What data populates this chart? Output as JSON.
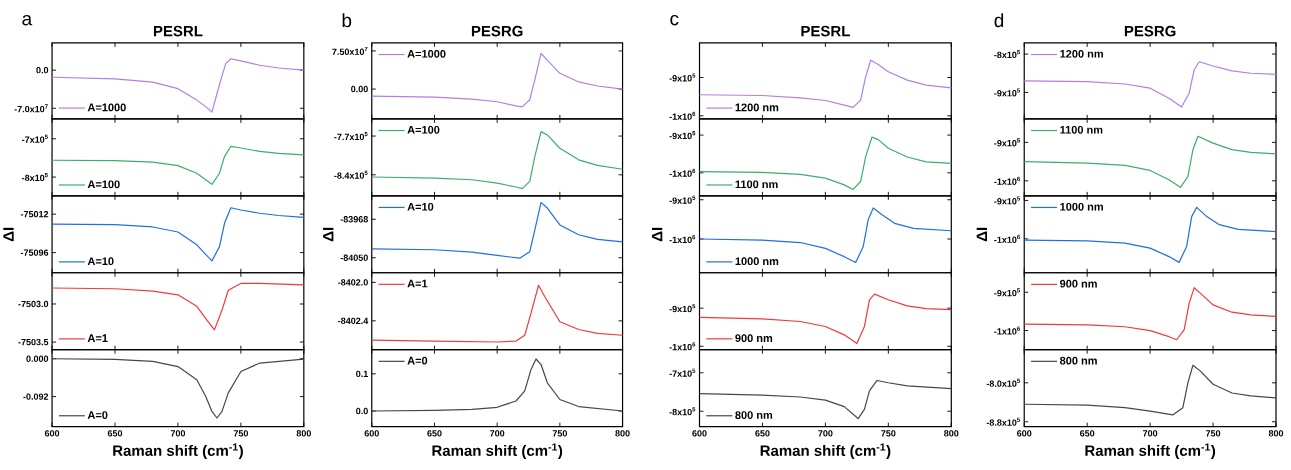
{
  "chart_data": [
    {
      "type": "line",
      "title": "PESRL",
      "annotations": [
        "a"
      ],
      "legend": "bottom left",
      "tick_labels": "y",
      "xlim": [
        600,
        800
      ],
      "xticks": [
        600,
        650,
        700,
        750,
        800
      ],
      "ylim": [
        -89500000,
        50000000
      ],
      "yticks": [
        {
          "value": -70000000,
          "label": "-7.0x10$^{7}$"
        },
        {
          "value": 0,
          "label": "0.0"
        }
      ],
      "x": [
        600,
        650,
        680,
        700,
        715,
        722,
        727,
        734,
        738,
        742,
        750,
        765,
        780,
        800
      ],
      "series": [
        {
          "name": "A=1000",
          "color": "#b27fe6",
          "values": [
            -13000000,
            -16000000,
            -22000000,
            -34000000,
            -55000000,
            -67000000,
            -77000000,
            -18000000,
            12000000,
            21000000,
            17000000,
            9000000,
            4000000,
            0
          ]
        }
      ]
    },
    {
      "type": "line",
      "legend": "bottom left",
      "tick_labels": "y",
      "xlim": [
        600,
        800
      ],
      "xticks": [
        600,
        650,
        700,
        750,
        800
      ],
      "ylim": [
        -849000,
        -648000
      ],
      "yticks": [
        {
          "value": -800000,
          "label": "-8x10$^{5}$"
        },
        {
          "value": -700000,
          "label": "-7x10$^{5}$"
        }
      ],
      "x": [
        600,
        650,
        680,
        700,
        715,
        722,
        727,
        733,
        737,
        742,
        750,
        765,
        780,
        800
      ],
      "series": [
        {
          "name": "A=100",
          "color": "#3cae6a",
          "values": [
            -756000,
            -757000,
            -761000,
            -770000,
            -790000,
            -807000,
            -819000,
            -790000,
            -746000,
            -720000,
            -724000,
            -733000,
            -738000,
            -742000
          ]
        }
      ]
    },
    {
      "type": "line",
      "ylabel": "ΔI",
      "legend": "bottom left",
      "tick_labels": "y",
      "xlim": [
        600,
        800
      ],
      "xticks": [
        600,
        650,
        700,
        750,
        800
      ],
      "ylim": [
        -75140,
        -74972
      ],
      "yticks": [
        -75096,
        -75012
      ],
      "x": [
        600,
        650,
        680,
        700,
        715,
        722,
        727,
        733,
        737,
        742,
        750,
        765,
        780,
        800
      ],
      "series": [
        {
          "name": "A=10",
          "color": "#1e6fe3",
          "values": [
            -75034,
            -75035,
            -75040,
            -75051,
            -75079,
            -75100,
            -75114,
            -75083,
            -75032,
            -74998,
            -75003,
            -75010,
            -75015,
            -75019
          ]
        }
      ]
    },
    {
      "type": "line",
      "legend": "bottom left",
      "tick_labels": "y",
      "xlim": [
        600,
        800
      ],
      "xticks": [
        600,
        650,
        700,
        750,
        800
      ],
      "ylim": [
        -7503.6,
        -7502.59
      ],
      "yticks": [
        {
          "value": -7503.5,
          "label": "-7503.5"
        },
        {
          "value": -7503,
          "label": "-7503.0"
        }
      ],
      "x": [
        600,
        650,
        680,
        700,
        715,
        722,
        729,
        735,
        740,
        750,
        765,
        800
      ],
      "series": [
        {
          "name": "A=1",
          "color": "#f03a3a",
          "values": [
            -7502.79,
            -7502.8,
            -7502.83,
            -7502.88,
            -7503.03,
            -7503.19,
            -7503.34,
            -7503.08,
            -7502.82,
            -7502.73,
            -7502.73,
            -7502.75
          ]
        }
      ]
    },
    {
      "type": "line",
      "xlabel": "Raman shift (cm$^{-1}$)",
      "legend": "bottom left",
      "xlim": [
        600,
        800
      ],
      "xticks": [
        600,
        650,
        700,
        750,
        800
      ],
      "ylim": [
        -0.165,
        0.022
      ],
      "yticks": [
        -0.092,
        {
          "value": 0,
          "label": "0.000"
        }
      ],
      "x": [
        600,
        650,
        680,
        700,
        715,
        722,
        727,
        731,
        735,
        740,
        750,
        765,
        800
      ],
      "series": [
        {
          "name": "A=0",
          "color": "#474747",
          "values": [
            0,
            -0.0016,
            -0.0065,
            -0.019,
            -0.051,
            -0.091,
            -0.128,
            -0.144,
            -0.128,
            -0.083,
            -0.031,
            -0.0105,
            -0.0008
          ]
        }
      ]
    },
    {
      "type": "line",
      "title": "PESRG",
      "annotations": [
        "b"
      ],
      "legend": "top left",
      "tick_labels": "y",
      "xlim": [
        600,
        800
      ],
      "xticks": [
        600,
        650,
        700,
        750,
        800
      ],
      "ylim": [
        -58700000,
        90700000
      ],
      "yticks": [
        {
          "value": 0,
          "label": "0.00"
        },
        {
          "value": 75000000,
          "label": "7.50x10$^{7}$"
        }
      ],
      "x": [
        600,
        650,
        680,
        700,
        715,
        720,
        726,
        730,
        735,
        740,
        750,
        765,
        780,
        800
      ],
      "series": [
        {
          "name": "A=1000",
          "color": "#b27fe6",
          "values": [
            -14000000,
            -16000000,
            -20000000,
            -25000000,
            -33000000,
            -35000000,
            -21000000,
            18000000,
            70000000,
            57000000,
            31000000,
            14000000,
            6000000,
            0
          ]
        }
      ]
    },
    {
      "type": "line",
      "legend": "top left",
      "tick_labels": "y",
      "xlim": [
        600,
        800
      ],
      "xticks": [
        600,
        650,
        700,
        750,
        800
      ],
      "ylim": [
        -878000,
        -739000
      ],
      "yticks": [
        {
          "value": -840000,
          "label": "-8.4x10$^{5}$"
        },
        {
          "value": -770000,
          "label": "-7.7x10$^{5}$"
        }
      ],
      "x": [
        600,
        650,
        680,
        700,
        715,
        720,
        726,
        730,
        735,
        740,
        750,
        765,
        780,
        800
      ],
      "series": [
        {
          "name": "A=100",
          "color": "#3cae6a",
          "values": [
            -844000,
            -846000,
            -849000,
            -855000,
            -862000,
            -865000,
            -852000,
            -807000,
            -762000,
            -768000,
            -792000,
            -813000,
            -823000,
            -830000
          ]
        }
      ]
    },
    {
      "type": "line",
      "ylabel": "ΔI",
      "legend": "top left",
      "tick_labels": "y",
      "xlim": [
        600,
        800
      ],
      "xticks": [
        600,
        650,
        700,
        750,
        800
      ],
      "ylim": [
        -84082,
        -83918
      ],
      "yticks": [
        -84050,
        -83968
      ],
      "x": [
        600,
        650,
        680,
        700,
        718,
        726,
        730,
        735,
        740,
        750,
        765,
        780,
        800
      ],
      "series": [
        {
          "name": "A=10",
          "color": "#1e6fe3",
          "values": [
            -84031,
            -84033,
            -84038,
            -84045,
            -84051,
            -84037,
            -83991,
            -83932,
            -83944,
            -83980,
            -84001,
            -84011,
            -84016
          ]
        }
      ]
    },
    {
      "type": "line",
      "legend": "top left",
      "tick_labels": "y",
      "xlim": [
        600,
        800
      ],
      "xticks": [
        600,
        650,
        700,
        750,
        800
      ],
      "ylim": [
        -8402.7,
        -8401.9
      ],
      "yticks": [
        -8402.4,
        {
          "value": -8402,
          "label": "-8402.0"
        }
      ],
      "x": [
        600,
        650,
        700,
        715,
        722,
        727,
        733,
        738,
        750,
        765,
        780,
        800
      ],
      "series": [
        {
          "name": "A=1",
          "color": "#f03a3a",
          "values": [
            -8402.6,
            -8402.61,
            -8402.62,
            -8402.61,
            -8402.55,
            -8402.32,
            -8402.03,
            -8402.15,
            -8402.41,
            -8402.49,
            -8402.53,
            -8402.55
          ]
        }
      ]
    },
    {
      "type": "line",
      "xlabel": "Raman shift (cm$^{-1}$)",
      "legend": "top left",
      "xlim": [
        600,
        800
      ],
      "xticks": [
        600,
        650,
        700,
        750,
        800
      ],
      "ylim": [
        -0.042,
        0.165
      ],
      "yticks": [
        {
          "value": 0,
          "label": "0.0"
        },
        0.1
      ],
      "x": [
        600,
        650,
        680,
        700,
        715,
        722,
        727,
        731,
        735,
        740,
        750,
        765,
        800
      ],
      "series": [
        {
          "name": "A=0",
          "color": "#474747",
          "values": [
            0,
            0.002,
            0.0045,
            0.01,
            0.027,
            0.054,
            0.112,
            0.14,
            0.125,
            0.076,
            0.031,
            0.012,
            0
          ]
        }
      ]
    },
    {
      "type": "line",
      "title": "PESRL",
      "annotations": [
        "c"
      ],
      "legend": "bottom left",
      "tick_labels": "y",
      "xlim": [
        600,
        800
      ],
      "xticks": [
        600,
        650,
        700,
        750,
        800
      ],
      "ylim": [
        -1008000,
        -810000
      ],
      "yticks": [
        {
          "value": -1000000,
          "label": "-1x10$^{6}$"
        },
        {
          "value": -900000,
          "label": "-9x10$^{5}$"
        }
      ],
      "x": [
        600,
        650,
        680,
        700,
        715,
        722,
        728,
        732,
        736,
        742,
        750,
        765,
        780,
        800
      ],
      "series": [
        {
          "name": "1200 nm",
          "color": "#b27fe6",
          "values": [
            -945000,
            -947000,
            -953000,
            -960000,
            -972000,
            -978000,
            -959000,
            -898000,
            -855000,
            -866000,
            -885000,
            -907000,
            -920000,
            -927000
          ]
        }
      ]
    },
    {
      "type": "line",
      "legend": "bottom left",
      "tick_labels": "y",
      "xlim": [
        600,
        800
      ],
      "xticks": [
        600,
        650,
        700,
        750,
        800
      ],
      "ylim": [
        -1061000,
        -857000
      ],
      "yticks": [
        {
          "value": -1000000,
          "label": "-1x10$^{6}$"
        },
        {
          "value": -900000,
          "label": "-9x10$^{5}$"
        }
      ],
      "x": [
        600,
        650,
        680,
        700,
        715,
        722,
        728,
        732,
        737,
        742,
        750,
        765,
        780,
        800
      ],
      "series": [
        {
          "name": "1100 nm",
          "color": "#3cae6a",
          "values": [
            -997000,
            -999000,
            -1004000,
            -1014000,
            -1032000,
            -1044000,
            -1023000,
            -957000,
            -905000,
            -912000,
            -935000,
            -958000,
            -971000,
            -975000
          ]
        }
      ]
    },
    {
      "type": "line",
      "ylabel": "ΔI",
      "legend": "bottom left",
      "tick_labels": "y",
      "xlim": [
        600,
        800
      ],
      "xticks": [
        600,
        650,
        700,
        750,
        800
      ],
      "ylim": [
        -1086000,
        -890000
      ],
      "yticks": [
        {
          "value": -1000000,
          "label": "-1x10$^{6}$"
        },
        {
          "value": -900000,
          "label": "-9x10$^{5}$"
        }
      ],
      "x": [
        600,
        650,
        680,
        700,
        715,
        724,
        730,
        734,
        738,
        745,
        755,
        770,
        800
      ],
      "series": [
        {
          "name": "1000 nm",
          "color": "#1e6fe3",
          "values": [
            -1000000,
            -1003000,
            -1009000,
            -1024000,
            -1045000,
            -1060000,
            -1020000,
            -951000,
            -921000,
            -938000,
            -960000,
            -973000,
            -979000
          ]
        }
      ]
    },
    {
      "type": "line",
      "legend": "bottom left",
      "tick_labels": "y",
      "xlim": [
        600,
        800
      ],
      "xticks": [
        600,
        650,
        700,
        750,
        800
      ],
      "ylim": [
        -1009000,
        -807000
      ],
      "yticks": [
        {
          "value": -1000000,
          "label": "-1x10$^{6}$"
        },
        {
          "value": -900000,
          "label": "-9x10$^{5}$"
        }
      ],
      "x": [
        600,
        650,
        680,
        700,
        715,
        725,
        731,
        735,
        739,
        750,
        765,
        780,
        800
      ],
      "series": [
        {
          "name": "900 nm",
          "color": "#f03a3a",
          "values": [
            -924000,
            -928000,
            -935000,
            -948000,
            -970000,
            -993000,
            -948000,
            -878000,
            -863000,
            -878000,
            -894000,
            -901000,
            -904000
          ]
        }
      ]
    },
    {
      "type": "line",
      "xlabel": "Raman shift (cm$^{-1}$)",
      "legend": "bottom left",
      "xlim": [
        600,
        800
      ],
      "xticks": [
        600,
        650,
        700,
        750,
        800
      ],
      "ylim": [
        -840000,
        -640000
      ],
      "yticks": [
        {
          "value": -800000,
          "label": "-8x10$^{5}$"
        },
        {
          "value": -700000,
          "label": "-7x10$^{5}$"
        }
      ],
      "x": [
        600,
        650,
        680,
        700,
        715,
        726,
        731,
        735,
        741,
        750,
        765,
        800
      ],
      "series": [
        {
          "name": "800 nm",
          "color": "#474747",
          "values": [
            -754000,
            -758000,
            -763000,
            -771000,
            -788000,
            -819000,
            -795000,
            -747000,
            -720000,
            -726000,
            -734000,
            -741000
          ]
        }
      ]
    },
    {
      "type": "line",
      "title": "PESRG",
      "annotations": [
        "d"
      ],
      "legend": "top left",
      "tick_labels": "y",
      "xlim": [
        600,
        800
      ],
      "xticks": [
        600,
        650,
        700,
        750,
        800
      ],
      "ylim": [
        -969000,
        -771000
      ],
      "yticks": [
        {
          "value": -900000,
          "label": "-9x10$^{5}$"
        },
        {
          "value": -800000,
          "label": "-8x10$^{5}$"
        }
      ],
      "x": [
        600,
        650,
        680,
        700,
        715,
        725,
        731,
        735,
        739,
        750,
        765,
        780,
        800
      ],
      "series": [
        {
          "name": "1200 nm",
          "color": "#b27fe6",
          "values": [
            -870000,
            -872000,
            -878000,
            -889000,
            -915000,
            -938000,
            -902000,
            -841000,
            -820000,
            -831000,
            -844000,
            -850000,
            -853000
          ]
        }
      ]
    },
    {
      "type": "line",
      "legend": "top left",
      "tick_labels": "y",
      "xlim": [
        600,
        800
      ],
      "xticks": [
        600,
        650,
        700,
        750,
        800
      ],
      "ylim": [
        -1039000,
        -839000
      ],
      "yticks": [
        {
          "value": -1000000,
          "label": "-1x10$^{6}$"
        },
        {
          "value": -900000,
          "label": "-9x10$^{5}$"
        }
      ],
      "x": [
        600,
        650,
        680,
        700,
        715,
        724,
        730,
        734,
        738,
        750,
        765,
        780,
        800
      ],
      "series": [
        {
          "name": "1100 nm",
          "color": "#3cae6a",
          "values": [
            -950000,
            -954000,
            -960000,
            -973000,
            -997000,
            -1017000,
            -989000,
            -919000,
            -884000,
            -902000,
            -919000,
            -926000,
            -930000
          ]
        }
      ]
    },
    {
      "type": "line",
      "ylabel": "ΔI",
      "legend": "top left",
      "tick_labels": "y",
      "xlim": [
        600,
        800
      ],
      "xticks": [
        600,
        650,
        700,
        750,
        800
      ],
      "ylim": [
        -1088000,
        -888000
      ],
      "yticks": [
        {
          "value": -1000000,
          "label": "-1x10$^{6}$"
        },
        {
          "value": -900000,
          "label": "-9x10$^{5}$"
        }
      ],
      "x": [
        600,
        650,
        680,
        700,
        715,
        723,
        729,
        733,
        737,
        745,
        755,
        770,
        800
      ],
      "series": [
        {
          "name": "1000 nm",
          "color": "#1e6fe3",
          "values": [
            -1003000,
            -1005000,
            -1011000,
            -1024000,
            -1046000,
            -1061000,
            -1020000,
            -942000,
            -918000,
            -942000,
            -963000,
            -975000,
            -981000
          ]
        }
      ]
    },
    {
      "type": "line",
      "legend": "top left",
      "tick_labels": "y",
      "xlim": [
        600,
        800
      ],
      "xticks": [
        600,
        650,
        700,
        750,
        800
      ],
      "ylim": [
        -1050000,
        -849000
      ],
      "yticks": [
        {
          "value": -1000000,
          "label": "-1x10$^{6}$"
        },
        {
          "value": -900000,
          "label": "-9x10$^{5}$"
        }
      ],
      "x": [
        600,
        650,
        680,
        700,
        715,
        721,
        727,
        731,
        735,
        740,
        750,
        765,
        780,
        800
      ],
      "series": [
        {
          "name": "900 nm",
          "color": "#f03a3a",
          "values": [
            -983000,
            -985000,
            -990000,
            -1000000,
            -1016000,
            -1024000,
            -998000,
            -929000,
            -888000,
            -903000,
            -933000,
            -952000,
            -959000,
            -963000
          ]
        }
      ]
    },
    {
      "type": "line",
      "xlabel": "Raman shift (cm$^{-1}$)",
      "legend": "top left",
      "xlim": [
        600,
        800
      ],
      "xticks": [
        600,
        650,
        700,
        750,
        800
      ],
      "ylim": [
        -890000,
        -732000
      ],
      "yticks": [
        {
          "value": -880000,
          "label": "-8.8x10$^{5}$"
        },
        {
          "value": -800000,
          "label": "-8.0x10$^{5}$"
        }
      ],
      "x": [
        600,
        650,
        680,
        700,
        718,
        726,
        730,
        734,
        740,
        750,
        765,
        780,
        800
      ],
      "series": [
        {
          "name": "800 nm",
          "color": "#474747",
          "values": [
            -844000,
            -846000,
            -851000,
            -858000,
            -866000,
            -851000,
            -800000,
            -764000,
            -776000,
            -803000,
            -821000,
            -827000,
            -831000
          ]
        }
      ]
    }
  ]
}
